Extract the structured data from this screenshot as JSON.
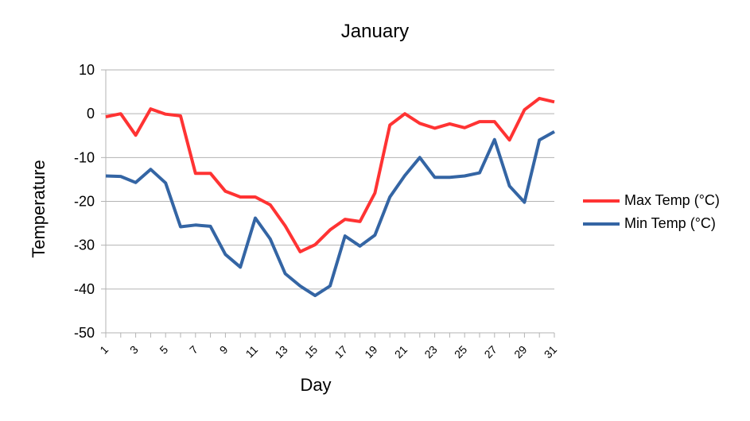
{
  "chart_data": {
    "type": "line",
    "title": "January",
    "xlabel": "Day",
    "ylabel": "Temperature",
    "ylim": [
      -50,
      10
    ],
    "yticks": [
      10,
      0,
      -10,
      -20,
      -30,
      -40,
      -50
    ],
    "xtick_labels": [
      "1",
      "3",
      "5",
      "7",
      "9",
      "11",
      "13",
      "15",
      "17",
      "19",
      "21",
      "23",
      "25",
      "27",
      "29",
      "31"
    ],
    "x": [
      1,
      2,
      3,
      4,
      5,
      6,
      7,
      8,
      9,
      10,
      11,
      12,
      13,
      14,
      15,
      16,
      17,
      18,
      19,
      20,
      21,
      22,
      23,
      24,
      25,
      26,
      27,
      28,
      29,
      30,
      31
    ],
    "grid": "horizontal",
    "legend_position": "right",
    "series": [
      {
        "name": "Max Temp (°C)",
        "color": "#ff3333",
        "values": [
          -0.7,
          0,
          -4.9,
          1.1,
          -0.1,
          -0.5,
          -13.6,
          -13.6,
          -17.7,
          -19,
          -19,
          -20.8,
          -25.6,
          -31.5,
          -29.9,
          -26.5,
          -24.1,
          -24.6,
          -18.1,
          -2.6,
          0,
          -2.2,
          -3.3,
          -2.3,
          -3.2,
          -1.8,
          -1.8,
          -6,
          0.9,
          3.5,
          2.7
        ]
      },
      {
        "name": "Min Temp (°C)",
        "color": "#3465a4",
        "values": [
          -14.2,
          -14.3,
          -15.7,
          -12.7,
          -15.8,
          -25.8,
          -25.4,
          -25.7,
          -32.1,
          -35,
          -23.8,
          -28.6,
          -36.5,
          -39.3,
          -41.5,
          -39.3,
          -27.9,
          -30.2,
          -27.7,
          -19,
          -14.1,
          -10,
          -14.5,
          -14.5,
          -14.2,
          -13.5,
          -5.9,
          -16.5,
          -20.2,
          -6,
          -4.1
        ]
      }
    ]
  }
}
